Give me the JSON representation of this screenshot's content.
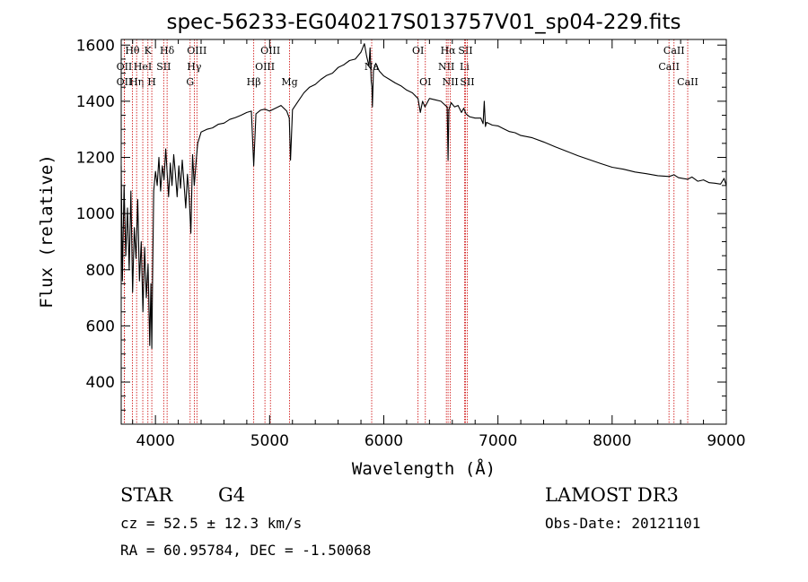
{
  "chart_data": {
    "type": "line",
    "title": "spec-56233-EG040217S013757V01_sp04-229.fits",
    "xlabel": "Wavelength (Å)",
    "ylabel": "Flux (relative)",
    "xlim": [
      3700,
      9000
    ],
    "ylim": [
      250,
      1620
    ],
    "xticks": [
      4000,
      5000,
      6000,
      7000,
      8000,
      9000
    ],
    "yticks": [
      400,
      600,
      800,
      1000,
      1200,
      1400,
      1600
    ],
    "series": [
      {
        "name": "flux",
        "x": [
          3700,
          3710,
          3725,
          3740,
          3755,
          3770,
          3785,
          3800,
          3815,
          3830,
          3845,
          3860,
          3875,
          3890,
          3905,
          3920,
          3935,
          3950,
          3960,
          3968,
          3975,
          3985,
          4000,
          4015,
          4030,
          4045,
          4060,
          4075,
          4090,
          4102,
          4115,
          4130,
          4145,
          4160,
          4175,
          4190,
          4205,
          4220,
          4235,
          4250,
          4265,
          4280,
          4295,
          4310,
          4325,
          4340,
          4355,
          4370,
          4400,
          4450,
          4500,
          4550,
          4600,
          4650,
          4700,
          4750,
          4800,
          4840,
          4861,
          4880,
          4920,
          4960,
          5000,
          5050,
          5100,
          5150,
          5172,
          5183,
          5200,
          5250,
          5300,
          5350,
          5400,
          5450,
          5500,
          5550,
          5600,
          5650,
          5700,
          5750,
          5800,
          5830,
          5850,
          5870,
          5880,
          5890,
          5896,
          5900,
          5910,
          5930,
          5960,
          6000,
          6050,
          6100,
          6150,
          6200,
          6250,
          6300,
          6320,
          6340,
          6360,
          6400,
          6450,
          6500,
          6540,
          6555,
          6563,
          6570,
          6590,
          6620,
          6650,
          6680,
          6700,
          6720,
          6750,
          6800,
          6850,
          6870,
          6880,
          6890,
          6900,
          6950,
          7000,
          7050,
          7100,
          7150,
          7200,
          7300,
          7400,
          7500,
          7600,
          7700,
          7800,
          7900,
          8000,
          8100,
          8200,
          8300,
          8400,
          8500,
          8542,
          8580,
          8662,
          8700,
          8750,
          8800,
          8850,
          8900,
          8950,
          8980,
          9000
        ],
        "y": [
          1170,
          760,
          1100,
          850,
          1020,
          800,
          1080,
          720,
          950,
          840,
          1050,
          760,
          900,
          650,
          880,
          700,
          820,
          530,
          750,
          520,
          780,
          1080,
          1150,
          1100,
          1200,
          1080,
          1170,
          1120,
          1230,
          1150,
          1060,
          1180,
          1100,
          1210,
          1140,
          1060,
          1170,
          1090,
          1190,
          1110,
          1020,
          1140,
          1060,
          930,
          1210,
          1100,
          1180,
          1250,
          1290,
          1300,
          1305,
          1318,
          1322,
          1335,
          1342,
          1350,
          1360,
          1365,
          1170,
          1355,
          1368,
          1372,
          1365,
          1375,
          1385,
          1365,
          1340,
          1190,
          1370,
          1400,
          1430,
          1450,
          1460,
          1478,
          1492,
          1500,
          1520,
          1530,
          1545,
          1550,
          1575,
          1605,
          1560,
          1525,
          1590,
          1470,
          1450,
          1380,
          1510,
          1535,
          1508,
          1490,
          1478,
          1465,
          1455,
          1440,
          1430,
          1410,
          1360,
          1400,
          1380,
          1410,
          1405,
          1400,
          1385,
          1380,
          1190,
          1370,
          1395,
          1380,
          1385,
          1360,
          1375,
          1355,
          1345,
          1340,
          1340,
          1320,
          1400,
          1310,
          1325,
          1315,
          1312,
          1302,
          1292,
          1288,
          1278,
          1270,
          1255,
          1238,
          1222,
          1206,
          1192,
          1178,
          1165,
          1158,
          1148,
          1142,
          1135,
          1132,
          1138,
          1128,
          1122,
          1130,
          1115,
          1120,
          1110,
          1108,
          1105,
          1125,
          1100
        ]
      }
    ],
    "line_markers": [
      {
        "wl": 3798,
        "label": "Hθ",
        "row": 0
      },
      {
        "wl": 3727,
        "label": "OII",
        "row": 1
      },
      {
        "wl": 3727,
        "label": "OII",
        "row": 2
      },
      {
        "wl": 3835,
        "label": "Hη",
        "row": 2
      },
      {
        "wl": 3889,
        "label": "HeI",
        "row": 1
      },
      {
        "wl": 3934,
        "label": "K",
        "row": 0
      },
      {
        "wl": 3968,
        "label": "H",
        "row": 2
      },
      {
        "wl": 4072,
        "label": "SII",
        "row": 1
      },
      {
        "wl": 4102,
        "label": "Hδ",
        "row": 0
      },
      {
        "wl": 4304,
        "label": "G",
        "row": 2
      },
      {
        "wl": 4340,
        "label": "Hγ",
        "row": 1
      },
      {
        "wl": 4363,
        "label": "OIII",
        "row": 0
      },
      {
        "wl": 4861,
        "label": "Hβ",
        "row": 2
      },
      {
        "wl": 4959,
        "label": "OIII",
        "row": 1
      },
      {
        "wl": 5007,
        "label": "OIII",
        "row": 0
      },
      {
        "wl": 5175,
        "label": "Mg",
        "row": 2
      },
      {
        "wl": 5894,
        "label": "Na",
        "row": 1
      },
      {
        "wl": 6300,
        "label": "OI",
        "row": 0
      },
      {
        "wl": 6364,
        "label": "OI",
        "row": 2
      },
      {
        "wl": 6548,
        "label": "NII",
        "row": 1
      },
      {
        "wl": 6583,
        "label": "NII",
        "row": 2
      },
      {
        "wl": 6563,
        "label": "Hα",
        "row": 0
      },
      {
        "wl": 6707,
        "label": "Li",
        "row": 1
      },
      {
        "wl": 6716,
        "label": "SII",
        "row": 0
      },
      {
        "wl": 6731,
        "label": "SII",
        "row": 2
      },
      {
        "wl": 8498,
        "label": "CaII",
        "row": 1
      },
      {
        "wl": 8542,
        "label": "CaII",
        "row": 0
      },
      {
        "wl": 8662,
        "label": "CaII",
        "row": 2
      }
    ]
  },
  "info": {
    "class": "STAR",
    "subclass": "G4",
    "survey": "LAMOST DR3",
    "cz": "cz = 52.5 ± 12.3 km/s",
    "obs_date": "Obs-Date: 20121101",
    "radec": "RA =  60.95784, DEC =  -1.50068"
  },
  "colors": {
    "line": "#000000",
    "marker": "#cc0000"
  }
}
